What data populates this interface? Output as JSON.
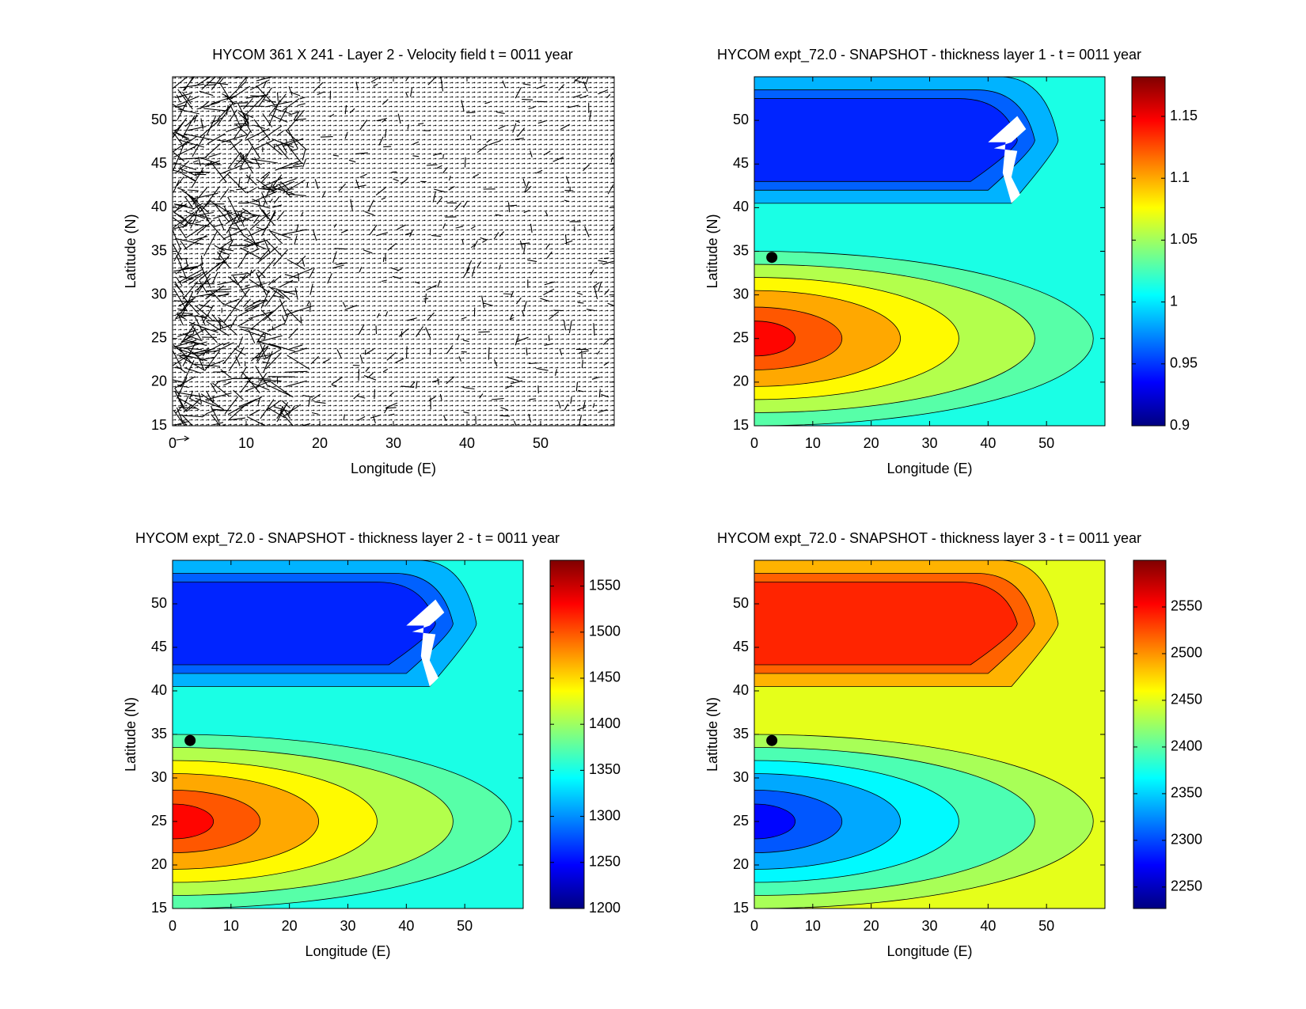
{
  "chart_data": [
    {
      "type": "quiver",
      "title": "HYCOM 361 X 241 - Layer 2 - Velocity field  t = 0011 year",
      "xlabel": "Longitude (E)",
      "ylabel": "Latitude (N)",
      "xlim": [
        0,
        60
      ],
      "ylim": [
        15,
        55
      ],
      "xticks": [
        0,
        10,
        20,
        30,
        40,
        50
      ],
      "yticks": [
        15,
        20,
        25,
        30,
        35,
        40,
        45,
        50
      ]
    },
    {
      "type": "contour",
      "title": "HYCOM expt_72.0 - SNAPSHOT - thickness layer 1 - t = 0011 year",
      "xlabel": "Longitude (E)",
      "ylabel": "Latitude (N)",
      "xlim": [
        0,
        60
      ],
      "ylim": [
        15,
        55
      ],
      "xticks": [
        0,
        10,
        20,
        30,
        40,
        50
      ],
      "yticks": [
        15,
        20,
        25,
        30,
        35,
        40,
        45,
        50
      ],
      "colormap": "jet",
      "clim": [
        0.9,
        1.182
      ],
      "cticks": [
        0.9,
        0.95,
        1,
        1.05,
        1.1,
        1.15
      ]
    },
    {
      "type": "contour",
      "title": "HYCOM expt_72.0 - SNAPSHOT - thickness layer 2 - t = 0011 year",
      "xlabel": "Longitude (E)",
      "ylabel": "Latitude (N)",
      "xlim": [
        0,
        60
      ],
      "ylim": [
        15,
        55
      ],
      "xticks": [
        0,
        10,
        20,
        30,
        40,
        50
      ],
      "yticks": [
        15,
        20,
        25,
        30,
        35,
        40,
        45,
        50
      ],
      "colormap": "jet",
      "clim": [
        1200,
        1578
      ],
      "cticks": [
        1200,
        1250,
        1300,
        1350,
        1400,
        1450,
        1500,
        1550
      ]
    },
    {
      "type": "contour",
      "title": "HYCOM expt_72.0 - SNAPSHOT - thickness layer 3 - t = 0011 year",
      "xlabel": "Longitude (E)",
      "ylabel": "Latitude (N)",
      "xlim": [
        0,
        60
      ],
      "ylim": [
        15,
        55
      ],
      "xticks": [
        0,
        10,
        20,
        30,
        40,
        50
      ],
      "yticks": [
        15,
        20,
        25,
        30,
        35,
        40,
        45,
        50
      ],
      "colormap": "jet",
      "clim": [
        2227,
        2600
      ],
      "cticks": [
        2250,
        2300,
        2350,
        2400,
        2450,
        2500,
        2550
      ]
    }
  ]
}
